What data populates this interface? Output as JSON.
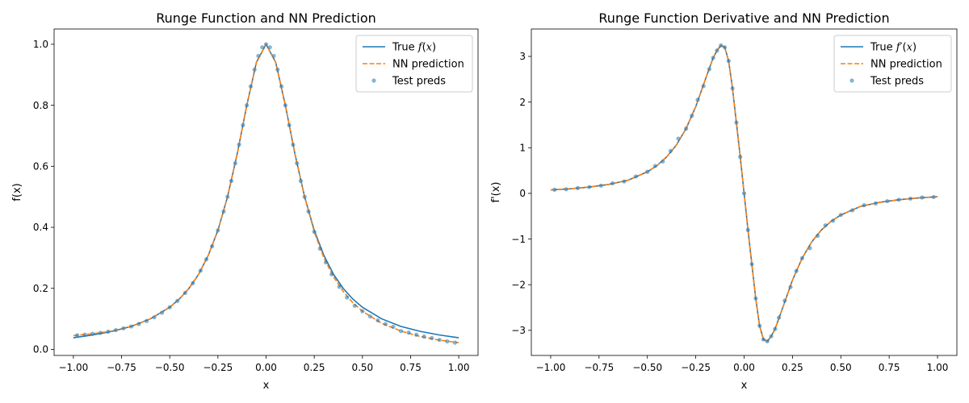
{
  "colors": {
    "true_line": "#1f77b4",
    "nn_line": "#ff7f0e",
    "test_points": "#1f77b4"
  },
  "chart_data": [
    {
      "type": "line",
      "title": "Runge Function and NN Prediction",
      "xlabel": "x",
      "ylabel": "f(x)",
      "xlim": [
        -1.1,
        1.1
      ],
      "ylim": [
        -0.02,
        1.05
      ],
      "xticks": [
        -1.0,
        -0.75,
        -0.5,
        -0.25,
        0.0,
        0.25,
        0.5,
        0.75,
        1.0
      ],
      "xtick_labels": [
        "−1.00",
        "−0.75",
        "−0.50",
        "−0.25",
        "0.00",
        "0.25",
        "0.50",
        "0.75",
        "1.00"
      ],
      "yticks": [
        0.0,
        0.2,
        0.4,
        0.6,
        0.8,
        1.0
      ],
      "ytick_labels": [
        "0.0",
        "0.2",
        "0.4",
        "0.6",
        "0.8",
        "1.0"
      ],
      "grid": false,
      "legend": {
        "position": "top-right",
        "entries": [
          {
            "label": "True f(x)",
            "label_parts": [
              "True ",
              "f",
              "(",
              "x",
              ")"
            ],
            "style": "solid-line",
            "color": "#1f77b4"
          },
          {
            "label": "NN prediction",
            "label_parts": [
              "NN prediction"
            ],
            "style": "dashed-line",
            "color": "#ff7f0e"
          },
          {
            "label": "Test preds",
            "label_parts": [
              "Test preds"
            ],
            "style": "scatter",
            "color": "#1f77b4"
          }
        ]
      },
      "series": [
        {
          "name": "True f(x)",
          "kind": "line",
          "x": [
            -1.0,
            -0.9,
            -0.8,
            -0.7,
            -0.6,
            -0.5,
            -0.45,
            -0.4,
            -0.35,
            -0.3,
            -0.25,
            -0.2,
            -0.15,
            -0.1,
            -0.05,
            0.0,
            0.05,
            0.1,
            0.15,
            0.2,
            0.25,
            0.3,
            0.35,
            0.4,
            0.45,
            0.5,
            0.6,
            0.7,
            0.8,
            0.9,
            1.0
          ],
          "y": [
            0.038,
            0.047,
            0.059,
            0.075,
            0.1,
            0.138,
            0.165,
            0.2,
            0.246,
            0.308,
            0.39,
            0.5,
            0.64,
            0.8,
            0.941,
            1.0,
            0.941,
            0.8,
            0.64,
            0.5,
            0.39,
            0.308,
            0.246,
            0.2,
            0.165,
            0.138,
            0.1,
            0.075,
            0.059,
            0.047,
            0.038
          ]
        },
        {
          "name": "NN prediction",
          "kind": "dashed",
          "x": [
            -1.0,
            -0.9,
            -0.8,
            -0.7,
            -0.6,
            -0.5,
            -0.45,
            -0.4,
            -0.35,
            -0.3,
            -0.25,
            -0.2,
            -0.15,
            -0.1,
            -0.05,
            0.0,
            0.05,
            0.1,
            0.15,
            0.2,
            0.25,
            0.3,
            0.35,
            0.4,
            0.45,
            0.5,
            0.6,
            0.7,
            0.8,
            0.9,
            1.0
          ],
          "y": [
            0.045,
            0.051,
            0.06,
            0.075,
            0.1,
            0.138,
            0.165,
            0.2,
            0.246,
            0.308,
            0.39,
            0.5,
            0.64,
            0.8,
            0.941,
            1.0,
            0.941,
            0.8,
            0.64,
            0.5,
            0.385,
            0.3,
            0.238,
            0.19,
            0.153,
            0.125,
            0.085,
            0.06,
            0.042,
            0.03,
            0.022
          ]
        },
        {
          "name": "Test preds",
          "kind": "scatter",
          "x": [
            -0.98,
            -0.94,
            -0.9,
            -0.86,
            -0.82,
            -0.78,
            -0.74,
            -0.7,
            -0.66,
            -0.62,
            -0.58,
            -0.54,
            -0.5,
            -0.46,
            -0.42,
            -0.38,
            -0.34,
            -0.31,
            -0.28,
            -0.25,
            -0.22,
            -0.2,
            -0.18,
            -0.16,
            -0.14,
            -0.12,
            -0.1,
            -0.08,
            -0.06,
            -0.04,
            -0.02,
            0.0,
            0.02,
            0.04,
            0.06,
            0.08,
            0.1,
            0.12,
            0.14,
            0.16,
            0.18,
            0.2,
            0.22,
            0.25,
            0.28,
            0.31,
            0.34,
            0.38,
            0.42,
            0.46,
            0.5,
            0.54,
            0.58,
            0.62,
            0.66,
            0.7,
            0.74,
            0.78,
            0.82,
            0.86,
            0.9,
            0.94,
            0.98
          ],
          "y": [
            0.046,
            0.048,
            0.051,
            0.054,
            0.058,
            0.063,
            0.069,
            0.075,
            0.083,
            0.093,
            0.105,
            0.12,
            0.138,
            0.159,
            0.185,
            0.217,
            0.258,
            0.295,
            0.338,
            0.39,
            0.452,
            0.5,
            0.552,
            0.61,
            0.671,
            0.735,
            0.8,
            0.862,
            0.917,
            0.962,
            0.99,
            1.0,
            0.99,
            0.962,
            0.917,
            0.862,
            0.8,
            0.735,
            0.671,
            0.61,
            0.552,
            0.5,
            0.452,
            0.385,
            0.33,
            0.285,
            0.246,
            0.205,
            0.17,
            0.143,
            0.125,
            0.108,
            0.095,
            0.083,
            0.074,
            0.06,
            0.055,
            0.048,
            0.042,
            0.037,
            0.031,
            0.026,
            0.022
          ]
        }
      ]
    },
    {
      "type": "line",
      "title": "Runge Function Derivative and NN Prediction",
      "xlabel": "x",
      "ylabel": "f'(x)",
      "xlim": [
        -1.1,
        1.1
      ],
      "ylim": [
        -3.55,
        3.6
      ],
      "xticks": [
        -1.0,
        -0.75,
        -0.5,
        -0.25,
        0.0,
        0.25,
        0.5,
        0.75,
        1.0
      ],
      "xtick_labels": [
        "−1.00",
        "−0.75",
        "−0.50",
        "−0.25",
        "0.00",
        "0.25",
        "0.50",
        "0.75",
        "1.00"
      ],
      "yticks": [
        -3,
        -2,
        -1,
        0,
        1,
        2,
        3
      ],
      "ytick_labels": [
        "−3",
        "−2",
        "−1",
        "0",
        "1",
        "2",
        "3"
      ],
      "grid": false,
      "legend": {
        "position": "top-right",
        "entries": [
          {
            "label": "True f′(x)",
            "label_parts": [
              "True ",
              "f′",
              "(",
              "x",
              ")"
            ],
            "style": "solid-line",
            "color": "#1f77b4"
          },
          {
            "label": "NN prediction",
            "label_parts": [
              "NN prediction"
            ],
            "style": "dashed-line",
            "color": "#ff7f0e"
          },
          {
            "label": "Test preds",
            "label_parts": [
              "Test preds"
            ],
            "style": "scatter",
            "color": "#1f77b4"
          }
        ]
      },
      "series": [
        {
          "name": "True f'(x)",
          "kind": "line",
          "x": [
            -1.0,
            -0.9,
            -0.8,
            -0.7,
            -0.6,
            -0.5,
            -0.45,
            -0.4,
            -0.35,
            -0.3,
            -0.25,
            -0.2,
            -0.16,
            -0.14,
            -0.12,
            -0.1,
            -0.08,
            -0.06,
            -0.04,
            -0.02,
            0.0,
            0.02,
            0.04,
            0.06,
            0.08,
            0.1,
            0.12,
            0.14,
            0.16,
            0.2,
            0.25,
            0.3,
            0.35,
            0.4,
            0.45,
            0.5,
            0.6,
            0.7,
            0.8,
            0.9,
            1.0
          ],
          "y": [
            0.074,
            0.1,
            0.139,
            0.196,
            0.288,
            0.473,
            0.61,
            0.8,
            1.06,
            1.42,
            1.9,
            2.5,
            2.97,
            3.13,
            3.24,
            3.2,
            2.9,
            2.3,
            1.55,
            0.8,
            0.0,
            -0.8,
            -1.55,
            -2.3,
            -2.9,
            -3.2,
            -3.24,
            -3.13,
            -2.97,
            -2.5,
            -1.9,
            -1.42,
            -1.06,
            -0.8,
            -0.61,
            -0.473,
            -0.288,
            -0.196,
            -0.139,
            -0.1,
            -0.074
          ]
        },
        {
          "name": "NN prediction",
          "kind": "dashed",
          "x": [
            -1.0,
            -0.9,
            -0.8,
            -0.7,
            -0.6,
            -0.5,
            -0.45,
            -0.4,
            -0.35,
            -0.3,
            -0.25,
            -0.2,
            -0.16,
            -0.14,
            -0.12,
            -0.1,
            -0.08,
            -0.06,
            -0.04,
            -0.02,
            0.0,
            0.02,
            0.04,
            0.06,
            0.08,
            0.1,
            0.12,
            0.14,
            0.16,
            0.2,
            0.25,
            0.3,
            0.35,
            0.4,
            0.45,
            0.5,
            0.6,
            0.7,
            0.8,
            0.9,
            1.0
          ],
          "y": [
            0.074,
            0.1,
            0.139,
            0.196,
            0.288,
            0.473,
            0.61,
            0.8,
            1.06,
            1.42,
            1.9,
            2.5,
            2.97,
            3.13,
            3.24,
            3.2,
            2.9,
            2.3,
            1.55,
            0.8,
            0.0,
            -0.8,
            -1.55,
            -2.3,
            -2.9,
            -3.2,
            -3.24,
            -3.13,
            -2.97,
            -2.5,
            -1.9,
            -1.42,
            -1.06,
            -0.8,
            -0.61,
            -0.473,
            -0.288,
            -0.196,
            -0.139,
            -0.1,
            -0.074
          ]
        },
        {
          "name": "Test preds",
          "kind": "scatter",
          "x": [
            -0.98,
            -0.92,
            -0.86,
            -0.8,
            -0.74,
            -0.68,
            -0.62,
            -0.56,
            -0.5,
            -0.46,
            -0.42,
            -0.38,
            -0.34,
            -0.3,
            -0.27,
            -0.24,
            -0.21,
            -0.18,
            -0.16,
            -0.14,
            -0.12,
            -0.1,
            -0.08,
            -0.06,
            -0.04,
            -0.02,
            0.0,
            0.02,
            0.04,
            0.06,
            0.08,
            0.1,
            0.12,
            0.14,
            0.16,
            0.18,
            0.21,
            0.24,
            0.27,
            0.3,
            0.34,
            0.38,
            0.42,
            0.46,
            0.5,
            0.56,
            0.62,
            0.68,
            0.74,
            0.8,
            0.86,
            0.92,
            0.98
          ],
          "y": [
            0.08,
            0.09,
            0.115,
            0.139,
            0.17,
            0.22,
            0.26,
            0.37,
            0.473,
            0.6,
            0.7,
            0.93,
            1.2,
            1.42,
            1.7,
            2.05,
            2.35,
            2.72,
            2.97,
            3.13,
            3.24,
            3.2,
            2.9,
            2.3,
            1.55,
            0.8,
            0.0,
            -0.8,
            -1.55,
            -2.3,
            -2.9,
            -3.2,
            -3.24,
            -3.13,
            -2.97,
            -2.72,
            -2.35,
            -2.05,
            -1.7,
            -1.42,
            -1.2,
            -0.93,
            -0.7,
            -0.6,
            -0.473,
            -0.37,
            -0.26,
            -0.22,
            -0.17,
            -0.139,
            -0.115,
            -0.09,
            -0.08
          ]
        }
      ]
    }
  ]
}
